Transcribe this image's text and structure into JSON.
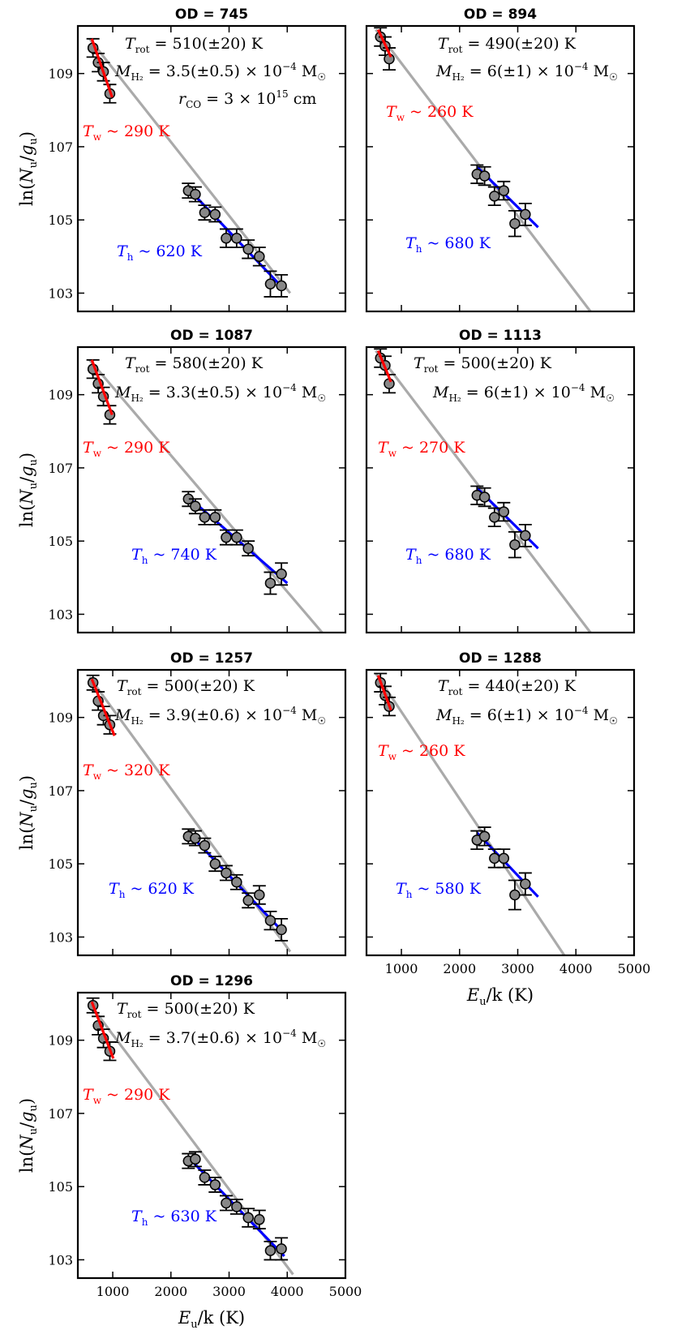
{
  "chart_data": {
    "type": "scatter",
    "figure": "CO rotational diagrams (7 panels)",
    "x_axis": {
      "label": "E_u/k (K)",
      "label_var": "E",
      "label_sub": "u",
      "label_rest": "/k (K)",
      "range": [
        400,
        5000
      ],
      "ticks": [
        1000,
        2000,
        3000,
        4000,
        5000
      ]
    },
    "y_axis": {
      "label": "ln(N_u/g_u)",
      "label_pre": "ln(",
      "label_var1": "N",
      "label_sub1": "u",
      "label_slash": "/",
      "label_var2": "g",
      "label_sub2": "u",
      "label_post": ")",
      "range": [
        102.5,
        110.3
      ],
      "ticks": [
        103,
        105,
        107,
        109
      ]
    },
    "colors": {
      "warm": "#ff0000",
      "hot": "#0000ff",
      "rot": "#aaaaaa",
      "points": "#888888"
    },
    "panels": [
      {
        "title": "OD = 745",
        "trot": {
          "var": "T",
          "sub": "rot",
          "text": " = 510(±20) K"
        },
        "mass": {
          "var": "M",
          "sub": "H₂",
          "text": " = 3.5(±0.5) × 10",
          "exp": "−4",
          "unit": " M",
          "sun": "☉"
        },
        "rco": {
          "var": "r",
          "sub": "CO",
          "text": " = 3 × 10",
          "exp": "15",
          "unit": " cm"
        },
        "tw": {
          "var": "T",
          "sub": "w",
          "text": " ~ 290 K"
        },
        "th": {
          "var": "T",
          "sub": "h",
          "text": " ~ 620 K"
        },
        "rot_line": [
          [
            600,
            109.95
          ],
          [
            4050,
            103.0
          ]
        ],
        "warm_fit": [
          [
            640,
            109.95
          ],
          [
            990,
            108.35
          ]
        ],
        "hot_fit": [
          [
            2300,
            105.85
          ],
          [
            3950,
            103.1
          ]
        ],
        "points": [
          {
            "x": 660,
            "y": 109.7,
            "err": 0.25
          },
          {
            "x": 750,
            "y": 109.3,
            "err": 0.25
          },
          {
            "x": 840,
            "y": 109.05,
            "err": 0.25
          },
          {
            "x": 950,
            "y": 108.45,
            "err": 0.25
          },
          {
            "x": 2300,
            "y": 105.8,
            "err": 0.2
          },
          {
            "x": 2420,
            "y": 105.7,
            "err": 0.2
          },
          {
            "x": 2580,
            "y": 105.2,
            "err": 0.2
          },
          {
            "x": 2760,
            "y": 105.15,
            "err": 0.2
          },
          {
            "x": 2950,
            "y": 104.5,
            "err": 0.25
          },
          {
            "x": 3130,
            "y": 104.5,
            "err": 0.25
          },
          {
            "x": 3330,
            "y": 104.2,
            "err": 0.25
          },
          {
            "x": 3520,
            "y": 104.0,
            "err": 0.25
          },
          {
            "x": 3710,
            "y": 103.25,
            "err": 0.35
          },
          {
            "x": 3900,
            "y": 103.2,
            "err": 0.3
          }
        ]
      },
      {
        "title": "OD = 894",
        "trot": {
          "var": "T",
          "sub": "rot",
          "text": " = 490(±20) K"
        },
        "mass": {
          "var": "M",
          "sub": "H₂",
          "text": " = 6(±1) × 10",
          "exp": "−4",
          "unit": " M",
          "sun": "☉"
        },
        "tw": {
          "var": "T",
          "sub": "w",
          "text": " ~ 260 K"
        },
        "th": {
          "var": "T",
          "sub": "h",
          "text": " ~ 680 K"
        },
        "rot_line": [
          [
            560,
            110.2
          ],
          [
            4250,
            102.5
          ]
        ],
        "warm_fit": [
          [
            600,
            110.2
          ],
          [
            820,
            109.45
          ]
        ],
        "hot_fit": [
          [
            2300,
            106.45
          ],
          [
            3350,
            104.8
          ]
        ],
        "points": [
          {
            "x": 640,
            "y": 110.0,
            "err": 0.25
          },
          {
            "x": 720,
            "y": 109.75,
            "err": 0.25
          },
          {
            "x": 790,
            "y": 109.4,
            "err": 0.3
          },
          {
            "x": 2300,
            "y": 106.25,
            "err": 0.25
          },
          {
            "x": 2430,
            "y": 106.2,
            "err": 0.25
          },
          {
            "x": 2600,
            "y": 105.65,
            "err": 0.25
          },
          {
            "x": 2760,
            "y": 105.8,
            "err": 0.25
          },
          {
            "x": 2950,
            "y": 104.9,
            "err": 0.35
          },
          {
            "x": 3130,
            "y": 105.15,
            "err": 0.3
          }
        ]
      },
      {
        "title": "OD = 1087",
        "trot": {
          "var": "T",
          "sub": "rot",
          "text": " = 580(±20) K"
        },
        "mass": {
          "var": "M",
          "sub": "H₂",
          "text": " = 3.3(±0.5) × 10",
          "exp": "−4",
          "unit": " M",
          "sun": "☉"
        },
        "tw": {
          "var": "T",
          "sub": "w",
          "text": " ~ 290 K"
        },
        "th": {
          "var": "T",
          "sub": "h",
          "text": " ~ 740 K"
        },
        "rot_line": [
          [
            600,
            109.95
          ],
          [
            4600,
            102.5
          ]
        ],
        "warm_fit": [
          [
            640,
            109.95
          ],
          [
            990,
            108.45
          ]
        ],
        "hot_fit": [
          [
            2300,
            106.2
          ],
          [
            4000,
            103.85
          ]
        ],
        "points": [
          {
            "x": 660,
            "y": 109.7,
            "err": 0.25
          },
          {
            "x": 750,
            "y": 109.3,
            "err": 0.25
          },
          {
            "x": 840,
            "y": 108.95,
            "err": 0.25
          },
          {
            "x": 950,
            "y": 108.45,
            "err": 0.25
          },
          {
            "x": 2300,
            "y": 106.15,
            "err": 0.2
          },
          {
            "x": 2420,
            "y": 105.95,
            "err": 0.2
          },
          {
            "x": 2580,
            "y": 105.65,
            "err": 0.2
          },
          {
            "x": 2760,
            "y": 105.65,
            "err": 0.2
          },
          {
            "x": 2950,
            "y": 105.1,
            "err": 0.2
          },
          {
            "x": 3130,
            "y": 105.1,
            "err": 0.2
          },
          {
            "x": 3330,
            "y": 104.8,
            "err": 0.2
          },
          {
            "x": 3710,
            "y": 103.85,
            "err": 0.3
          },
          {
            "x": 3900,
            "y": 104.1,
            "err": 0.3
          }
        ]
      },
      {
        "title": "OD = 1113",
        "trot": {
          "var": "T",
          "sub": "rot",
          "text": " = 500(±20) K"
        },
        "mass": {
          "var": "M",
          "sub": "H₂",
          "text": " = 6(±1) × 10",
          "exp": "−4",
          "unit": " M",
          "sun": "☉"
        },
        "tw": {
          "var": "T",
          "sub": "w",
          "text": " ~ 270 K"
        },
        "th": {
          "var": "T",
          "sub": "h",
          "text": " ~ 680 K"
        },
        "rot_line": [
          [
            560,
            110.2
          ],
          [
            4250,
            102.5
          ]
        ],
        "warm_fit": [
          [
            600,
            110.2
          ],
          [
            820,
            109.35
          ]
        ],
        "hot_fit": [
          [
            2300,
            106.45
          ],
          [
            3350,
            104.8
          ]
        ],
        "points": [
          {
            "x": 640,
            "y": 110.0,
            "err": 0.25
          },
          {
            "x": 720,
            "y": 109.8,
            "err": 0.25
          },
          {
            "x": 790,
            "y": 109.3,
            "err": 0.25
          },
          {
            "x": 2300,
            "y": 106.25,
            "err": 0.25
          },
          {
            "x": 2430,
            "y": 106.2,
            "err": 0.25
          },
          {
            "x": 2600,
            "y": 105.65,
            "err": 0.25
          },
          {
            "x": 2760,
            "y": 105.8,
            "err": 0.25
          },
          {
            "x": 2950,
            "y": 104.9,
            "err": 0.35
          },
          {
            "x": 3130,
            "y": 105.15,
            "err": 0.3
          }
        ]
      },
      {
        "title": "OD = 1257",
        "trot": {
          "var": "T",
          "sub": "rot",
          "text": " = 500(±20) K"
        },
        "mass": {
          "var": "M",
          "sub": "H₂",
          "text": " = 3.9(±0.6) × 10",
          "exp": "−4",
          "unit": " M",
          "sun": "☉"
        },
        "tw": {
          "var": "T",
          "sub": "w",
          "text": " ~ 320 K"
        },
        "th": {
          "var": "T",
          "sub": "h",
          "text": " ~ 620 K"
        },
        "rot_line": [
          [
            600,
            110.1
          ],
          [
            4050,
            102.6
          ]
        ],
        "warm_fit": [
          [
            640,
            110.05
          ],
          [
            1030,
            108.5
          ]
        ],
        "hot_fit": [
          [
            2300,
            105.85
          ],
          [
            3950,
            103.1
          ]
        ],
        "points": [
          {
            "x": 660,
            "y": 109.95,
            "err": 0.2
          },
          {
            "x": 750,
            "y": 109.45,
            "err": 0.25
          },
          {
            "x": 840,
            "y": 109.05,
            "err": 0.25
          },
          {
            "x": 950,
            "y": 108.8,
            "err": 0.25
          },
          {
            "x": 2300,
            "y": 105.75,
            "err": 0.2
          },
          {
            "x": 2420,
            "y": 105.7,
            "err": 0.2
          },
          {
            "x": 2580,
            "y": 105.5,
            "err": 0.2
          },
          {
            "x": 2760,
            "y": 105.0,
            "err": 0.2
          },
          {
            "x": 2950,
            "y": 104.75,
            "err": 0.2
          },
          {
            "x": 3130,
            "y": 104.5,
            "err": 0.2
          },
          {
            "x": 3330,
            "y": 104.0,
            "err": 0.2
          },
          {
            "x": 3520,
            "y": 104.15,
            "err": 0.25
          },
          {
            "x": 3710,
            "y": 103.45,
            "err": 0.25
          },
          {
            "x": 3900,
            "y": 103.2,
            "err": 0.3
          }
        ]
      },
      {
        "title": "OD = 1288",
        "trot": {
          "var": "T",
          "sub": "rot",
          "text": " = 440(±20) K"
        },
        "mass": {
          "var": "M",
          "sub": "H₂",
          "text": " = 6(±1) × 10",
          "exp": "−4",
          "unit": " M",
          "sun": "☉"
        },
        "tw": {
          "var": "T",
          "sub": "w",
          "text": " ~ 260 K"
        },
        "th": {
          "var": "T",
          "sub": "h",
          "text": " ~ 580 K"
        },
        "rot_line": [
          [
            560,
            110.2
          ],
          [
            3800,
            102.5
          ]
        ],
        "warm_fit": [
          [
            600,
            110.15
          ],
          [
            820,
            109.2
          ]
        ],
        "hot_fit": [
          [
            2300,
            105.85
          ],
          [
            3350,
            104.1
          ]
        ],
        "points": [
          {
            "x": 640,
            "y": 109.95,
            "err": 0.25
          },
          {
            "x": 720,
            "y": 109.6,
            "err": 0.25
          },
          {
            "x": 790,
            "y": 109.3,
            "err": 0.25
          },
          {
            "x": 2300,
            "y": 105.65,
            "err": 0.25
          },
          {
            "x": 2430,
            "y": 105.75,
            "err": 0.25
          },
          {
            "x": 2600,
            "y": 105.15,
            "err": 0.25
          },
          {
            "x": 2760,
            "y": 105.15,
            "err": 0.25
          },
          {
            "x": 2950,
            "y": 104.15,
            "err": 0.4
          },
          {
            "x": 3130,
            "y": 104.45,
            "err": 0.3
          }
        ]
      },
      {
        "title": "OD = 1296",
        "trot": {
          "var": "T",
          "sub": "rot",
          "text": " = 500(±20) K"
        },
        "mass": {
          "var": "M",
          "sub": "H₂",
          "text": " = 3.7(±0.6) × 10",
          "exp": "−4",
          "unit": " M",
          "sun": "☉"
        },
        "tw": {
          "var": "T",
          "sub": "w",
          "text": " ~ 290 K"
        },
        "th": {
          "var": "T",
          "sub": "h",
          "text": " ~ 630 K"
        },
        "rot_line": [
          [
            600,
            110.0
          ],
          [
            4100,
            102.6
          ]
        ],
        "warm_fit": [
          [
            640,
            110.05
          ],
          [
            1010,
            108.5
          ]
        ],
        "hot_fit": [
          [
            2300,
            105.8
          ],
          [
            3950,
            103.1
          ]
        ],
        "points": [
          {
            "x": 660,
            "y": 109.95,
            "err": 0.2
          },
          {
            "x": 750,
            "y": 109.4,
            "err": 0.25
          },
          {
            "x": 840,
            "y": 109.05,
            "err": 0.25
          },
          {
            "x": 950,
            "y": 108.7,
            "err": 0.25
          },
          {
            "x": 2300,
            "y": 105.7,
            "err": 0.2
          },
          {
            "x": 2420,
            "y": 105.75,
            "err": 0.2
          },
          {
            "x": 2580,
            "y": 105.25,
            "err": 0.2
          },
          {
            "x": 2760,
            "y": 105.05,
            "err": 0.2
          },
          {
            "x": 2950,
            "y": 104.55,
            "err": 0.2
          },
          {
            "x": 3130,
            "y": 104.45,
            "err": 0.2
          },
          {
            "x": 3330,
            "y": 104.15,
            "err": 0.25
          },
          {
            "x": 3520,
            "y": 104.1,
            "err": 0.25
          },
          {
            "x": 3710,
            "y": 103.25,
            "err": 0.25
          },
          {
            "x": 3900,
            "y": 103.3,
            "err": 0.3
          }
        ]
      }
    ]
  }
}
